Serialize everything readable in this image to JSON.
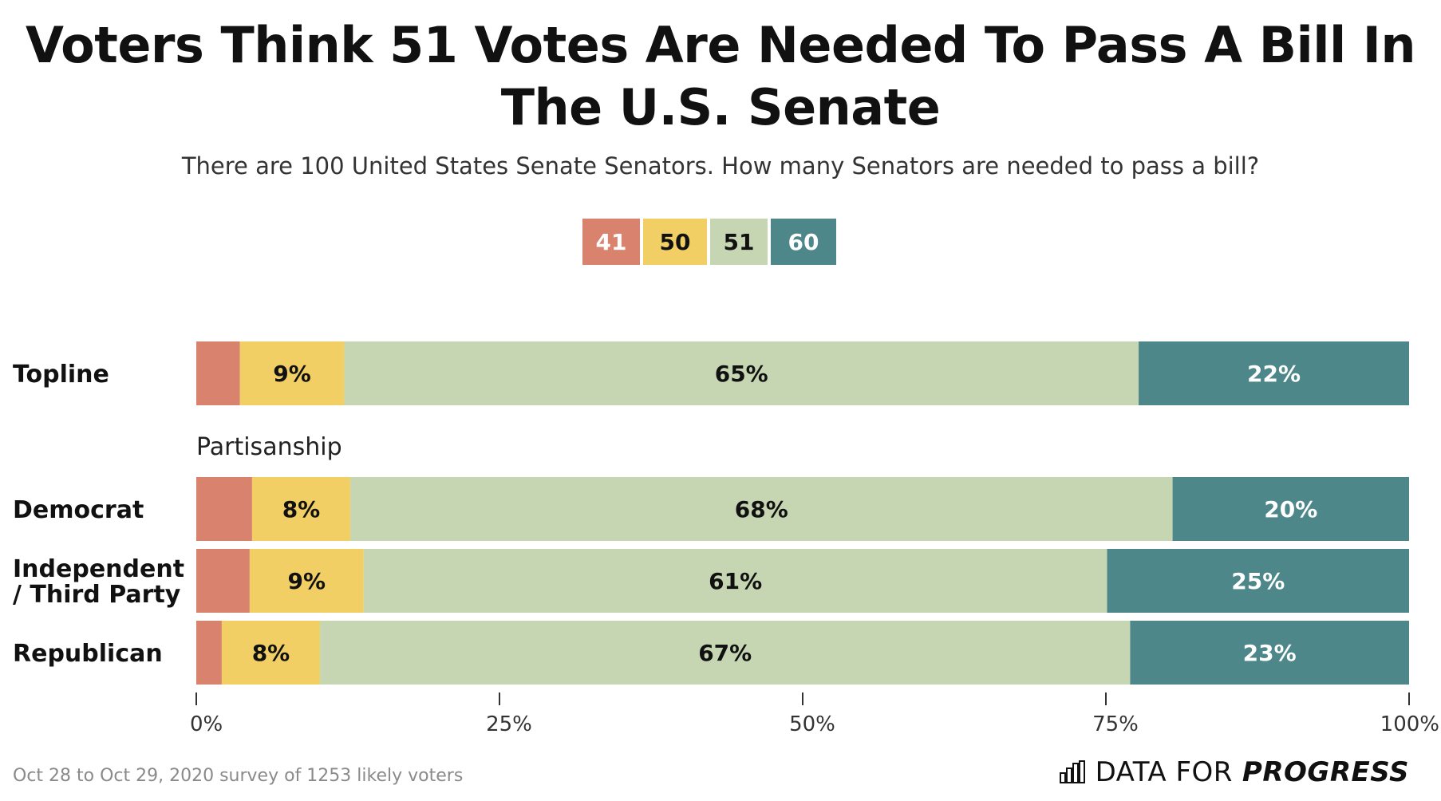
{
  "title": "Voters Think 51 Votes Are Needed To Pass A Bill In The U.S. Senate",
  "subtitle": "There are 100 United States Senate Senators. How many Senators are needed to pass a bill?",
  "footer_note": "Oct 28 to Oct 29, 2020 survey of 1253 likely voters",
  "brand": {
    "prefix": "DATA FOR",
    "strong": "PROGRESS",
    "icon": "bar-chart-icon"
  },
  "colors": {
    "41": "#d9826d",
    "50": "#f1cf64",
    "51": "#c6d6b2",
    "60": "#4d878a"
  },
  "chart_data": {
    "type": "bar",
    "orientation": "horizontal",
    "stacked": true,
    "legend_position": "top-center",
    "xlim": [
      0,
      100
    ],
    "xticks": [
      "0%",
      "25%",
      "50%",
      "75%",
      "100%"
    ],
    "series": [
      {
        "name": "41",
        "color": "#d9826d",
        "text_color": "#ffffff"
      },
      {
        "name": "50",
        "color": "#f1cf64",
        "text_color": "#111111"
      },
      {
        "name": "51",
        "color": "#c6d6b2",
        "text_color": "#111111"
      },
      {
        "name": "60",
        "color": "#4d878a",
        "text_color": "#ffffff"
      }
    ],
    "groups": [
      {
        "header": "",
        "rows": [
          {
            "label": "Topline",
            "values": [
              3.6,
              8.6,
              65.5,
              22.3
            ],
            "labels": [
              "",
              "9%",
              "65%",
              "22%"
            ]
          }
        ]
      },
      {
        "header": "Partisanship",
        "rows": [
          {
            "label": "Democrat",
            "values": [
              4.6,
              8.1,
              67.8,
              19.5
            ],
            "labels": [
              "",
              "8%",
              "68%",
              "20%"
            ]
          },
          {
            "label": "Independent / Third Party",
            "values": [
              4.4,
              9.4,
              61.3,
              24.9
            ],
            "labels": [
              "",
              "9%",
              "61%",
              "25%"
            ]
          },
          {
            "label": "Republican",
            "values": [
              2.1,
              8.1,
              66.8,
              23.0
            ],
            "labels": [
              "",
              "8%",
              "67%",
              "23%"
            ]
          }
        ]
      }
    ]
  }
}
